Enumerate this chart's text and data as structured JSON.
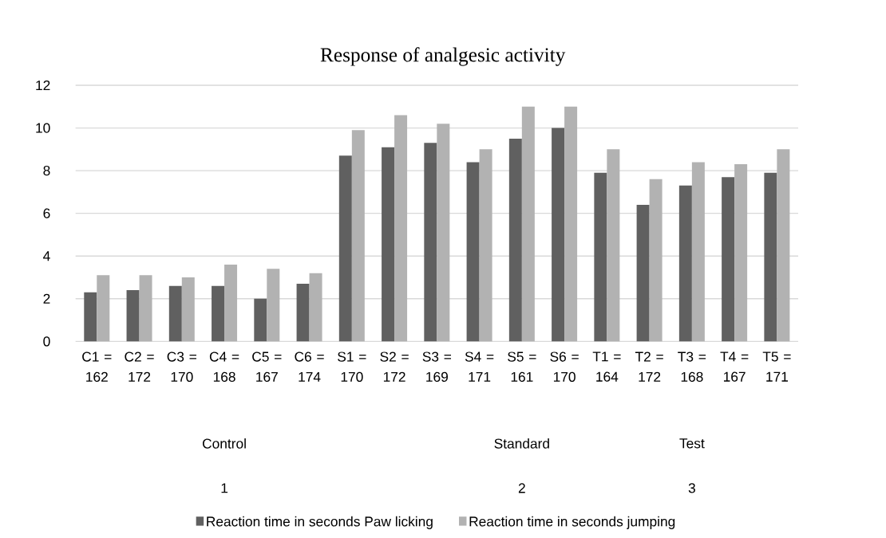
{
  "chart_data": {
    "type": "bar",
    "title": "Response of analgesic activity",
    "categories": [
      "C1 = 162",
      "C2 = 172",
      "C3 = 170",
      "C4 = 168",
      "C5 = 167",
      "C6 = 174",
      "S1 = 170",
      "S2 = 172",
      "S3 = 169",
      "S4 = 171",
      "S5 = 161",
      "S6 = 170",
      "T1 = 164",
      "T2 = 172",
      "T3 = 168",
      "T4 = 167",
      "T5 = 171"
    ],
    "series": [
      {
        "name": "Reaction time in seconds Paw licking",
        "color": "#606060",
        "values": [
          2.3,
          2.4,
          2.6,
          2.6,
          2.0,
          2.7,
          8.7,
          9.1,
          9.3,
          8.4,
          9.5,
          10.0,
          7.9,
          6.4,
          7.3,
          7.7,
          7.9
        ]
      },
      {
        "name": "Reaction time in seconds jumping",
        "color": "#b2b2b2",
        "values": [
          3.1,
          3.1,
          3.0,
          3.6,
          3.4,
          3.2,
          9.9,
          10.6,
          10.2,
          9.0,
          11.0,
          11.0,
          9.0,
          7.6,
          8.4,
          8.3,
          9.0
        ]
      }
    ],
    "annotations": [
      "Control",
      "Standard",
      "Test",
      "1",
      "2",
      "3"
    ],
    "ylim": [
      0,
      12
    ],
    "yticks": [
      0,
      2,
      4,
      6,
      8,
      10,
      12
    ],
    "grid": "y",
    "legend": "bottom"
  }
}
